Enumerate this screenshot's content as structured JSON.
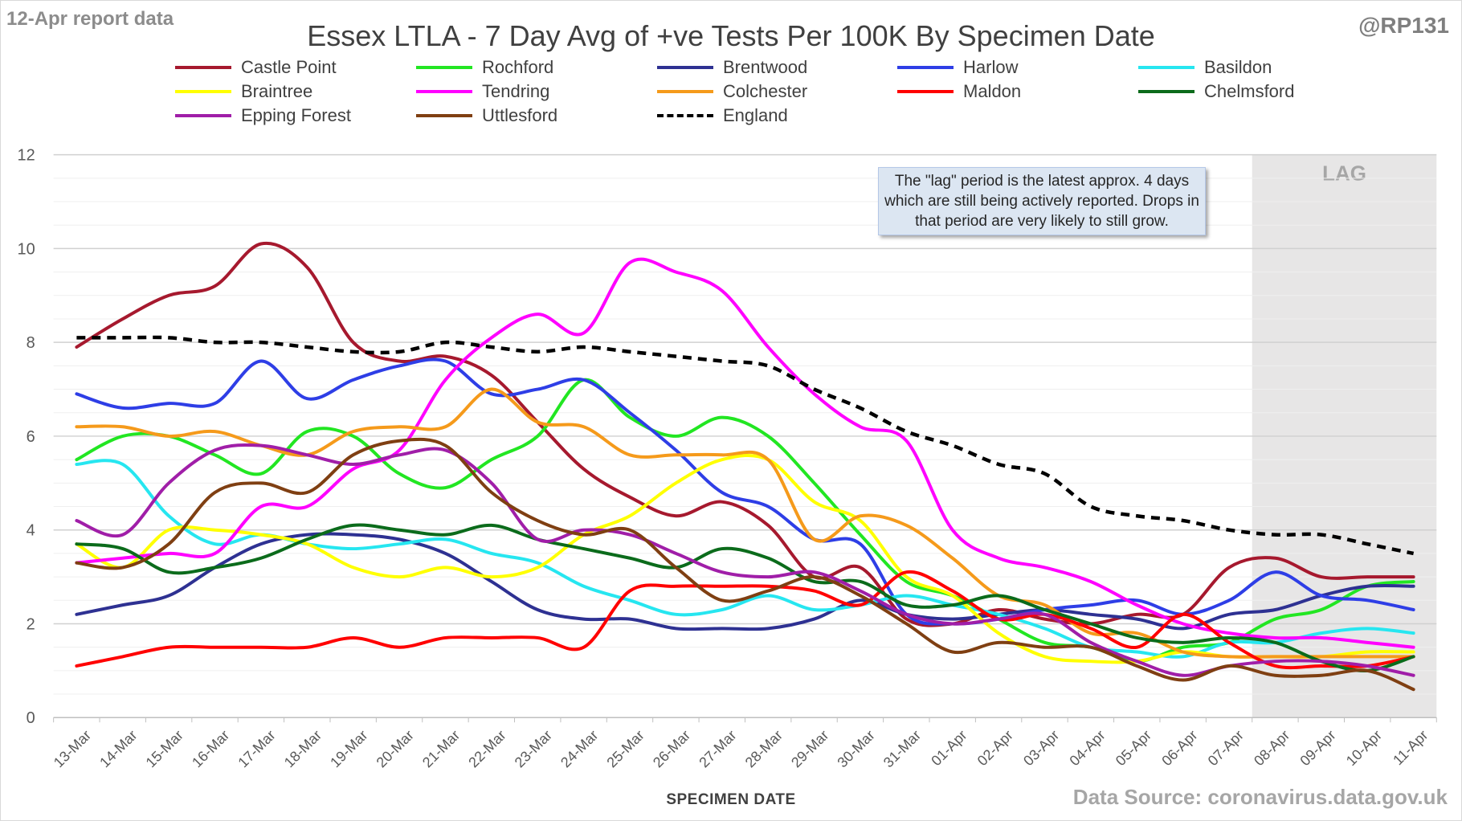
{
  "header": {
    "report_label": "12-Apr report data",
    "handle": "@RP131",
    "source": "Data Source: coronavirus.data.gov.uk"
  },
  "note": "The \"lag\" period is the latest approx. 4 days which are still being actively reported. Drops in that period are very likely to still grow.",
  "chart_data": {
    "type": "line",
    "title": "Essex LTLA - 7 Day Avg of +ve Tests Per 100K By Specimen Date",
    "xlabel": "SPECIMEN DATE",
    "ylabel": "",
    "ylim": [
      0,
      12
    ],
    "yticks": [
      0,
      2,
      4,
      6,
      8,
      10,
      12
    ],
    "grid": true,
    "legend": "top",
    "lag_label": "LAG",
    "lag_start": "08-Apr",
    "categories": [
      "13-Mar",
      "14-Mar",
      "15-Mar",
      "16-Mar",
      "17-Mar",
      "18-Mar",
      "19-Mar",
      "20-Mar",
      "21-Mar",
      "22-Mar",
      "23-Mar",
      "24-Mar",
      "25-Mar",
      "26-Mar",
      "27-Mar",
      "28-Mar",
      "29-Mar",
      "30-Mar",
      "31-Mar",
      "01-Apr",
      "02-Apr",
      "03-Apr",
      "04-Apr",
      "05-Apr",
      "06-Apr",
      "07-Apr",
      "08-Apr",
      "09-Apr",
      "10-Apr",
      "11-Apr"
    ],
    "series": [
      {
        "name": "Castle Point",
        "color": "#a6192e",
        "dashed": false,
        "values": [
          7.9,
          8.5,
          9.0,
          9.2,
          10.1,
          9.6,
          8.0,
          7.6,
          7.7,
          7.3,
          6.3,
          5.3,
          4.7,
          4.3,
          4.6,
          4.1,
          3.0,
          3.2,
          2.1,
          2.0,
          2.3,
          2.1,
          2.0,
          2.2,
          2.2,
          3.2,
          3.4,
          3.0,
          3.0,
          3.0
        ]
      },
      {
        "name": "Rochford",
        "color": "#22e622",
        "dashed": false,
        "values": [
          5.5,
          6.0,
          6.0,
          5.6,
          5.2,
          6.1,
          6.0,
          5.2,
          4.9,
          5.5,
          6.0,
          7.2,
          6.4,
          6.0,
          6.4,
          6.0,
          5.0,
          3.9,
          2.9,
          2.6,
          2.1,
          1.6,
          1.5,
          1.2,
          1.5,
          1.6,
          2.1,
          2.3,
          2.8,
          2.9
        ]
      },
      {
        "name": "Brentwood",
        "color": "#2e3192",
        "dashed": false,
        "values": [
          2.2,
          2.4,
          2.6,
          3.2,
          3.7,
          3.9,
          3.9,
          3.8,
          3.5,
          2.9,
          2.3,
          2.1,
          2.1,
          1.9,
          1.9,
          1.9,
          2.1,
          2.5,
          2.2,
          2.1,
          2.2,
          2.3,
          2.2,
          2.1,
          1.9,
          2.2,
          2.3,
          2.6,
          2.8,
          2.8
        ]
      },
      {
        "name": "Harlow",
        "color": "#2e3ee6",
        "dashed": false,
        "values": [
          6.9,
          6.6,
          6.7,
          6.7,
          7.6,
          6.8,
          7.2,
          7.5,
          7.6,
          6.9,
          7.0,
          7.2,
          6.5,
          5.7,
          4.8,
          4.5,
          3.8,
          3.7,
          2.2,
          2.0,
          2.1,
          2.3,
          2.4,
          2.5,
          2.2,
          2.5,
          3.1,
          2.6,
          2.5,
          2.3
        ]
      },
      {
        "name": "Basildon",
        "color": "#26e6f0",
        "dashed": false,
        "values": [
          5.4,
          5.4,
          4.3,
          3.7,
          3.9,
          3.7,
          3.6,
          3.7,
          3.8,
          3.5,
          3.3,
          2.8,
          2.5,
          2.2,
          2.3,
          2.6,
          2.3,
          2.4,
          2.6,
          2.4,
          2.2,
          1.9,
          1.5,
          1.4,
          1.3,
          1.6,
          1.6,
          1.8,
          1.9,
          1.8
        ]
      },
      {
        "name": "Braintree",
        "color": "#ffff00",
        "dashed": false,
        "values": [
          3.7,
          3.2,
          4.0,
          4.0,
          3.9,
          3.7,
          3.2,
          3.0,
          3.2,
          3.0,
          3.2,
          3.9,
          4.3,
          5.0,
          5.5,
          5.5,
          4.6,
          4.2,
          3.0,
          2.6,
          1.8,
          1.3,
          1.2,
          1.2,
          1.4,
          1.3,
          1.3,
          1.3,
          1.4,
          1.4
        ]
      },
      {
        "name": "Tendring",
        "color": "#ff00ff",
        "dashed": false,
        "values": [
          3.3,
          3.4,
          3.5,
          3.5,
          4.5,
          4.5,
          5.3,
          5.7,
          7.2,
          8.1,
          8.6,
          8.2,
          9.7,
          9.5,
          9.1,
          7.9,
          6.9,
          6.2,
          5.9,
          4.0,
          3.4,
          3.2,
          2.9,
          2.4,
          2.0,
          1.8,
          1.7,
          1.7,
          1.6,
          1.5
        ]
      },
      {
        "name": "Colchester",
        "color": "#f59a1b",
        "dashed": false,
        "values": [
          6.2,
          6.2,
          6.0,
          6.1,
          5.8,
          5.6,
          6.1,
          6.2,
          6.2,
          7.0,
          6.3,
          6.2,
          5.6,
          5.6,
          5.6,
          5.5,
          3.8,
          4.3,
          4.1,
          3.4,
          2.6,
          2.4,
          1.8,
          1.8,
          1.4,
          1.3,
          1.3,
          1.3,
          1.3,
          1.3
        ]
      },
      {
        "name": "Maldon",
        "color": "#ff0000",
        "dashed": false,
        "values": [
          1.1,
          1.3,
          1.5,
          1.5,
          1.5,
          1.5,
          1.7,
          1.5,
          1.7,
          1.7,
          1.7,
          1.5,
          2.7,
          2.8,
          2.8,
          2.8,
          2.7,
          2.4,
          3.1,
          2.7,
          2.1,
          2.2,
          1.9,
          1.5,
          2.2,
          1.6,
          1.1,
          1.1,
          1.1,
          1.3
        ]
      },
      {
        "name": "Chelmsford",
        "color": "#0b6b1b",
        "dashed": false,
        "values": [
          3.7,
          3.6,
          3.1,
          3.2,
          3.4,
          3.8,
          4.1,
          4.0,
          3.9,
          4.1,
          3.8,
          3.6,
          3.4,
          3.2,
          3.6,
          3.4,
          2.9,
          2.9,
          2.4,
          2.4,
          2.6,
          2.3,
          2.0,
          1.7,
          1.6,
          1.7,
          1.6,
          1.2,
          1.0,
          1.3
        ]
      },
      {
        "name": "Epping Forest",
        "color": "#a01ea8",
        "dashed": false,
        "values": [
          4.2,
          3.9,
          5.0,
          5.7,
          5.8,
          5.6,
          5.4,
          5.6,
          5.7,
          5.0,
          3.8,
          4.0,
          3.9,
          3.5,
          3.1,
          3.0,
          3.1,
          2.7,
          2.2,
          2.0,
          2.1,
          2.2,
          1.6,
          1.2,
          0.9,
          1.1,
          1.2,
          1.2,
          1.1,
          0.9
        ]
      },
      {
        "name": "Uttlesford",
        "color": "#7f3f12",
        "dashed": false,
        "values": [
          3.3,
          3.2,
          3.7,
          4.8,
          5.0,
          4.8,
          5.6,
          5.9,
          5.8,
          4.8,
          4.2,
          3.9,
          4.0,
          3.2,
          2.5,
          2.7,
          3.0,
          2.6,
          2.0,
          1.4,
          1.6,
          1.5,
          1.5,
          1.1,
          0.8,
          1.1,
          0.9,
          0.9,
          1.0,
          0.6
        ]
      },
      {
        "name": "England",
        "color": "#000000",
        "dashed": true,
        "values": [
          8.1,
          8.1,
          8.1,
          8.0,
          8.0,
          7.9,
          7.8,
          7.8,
          8.0,
          7.9,
          7.8,
          7.9,
          7.8,
          7.7,
          7.6,
          7.5,
          7.0,
          6.6,
          6.1,
          5.8,
          5.4,
          5.2,
          4.5,
          4.3,
          4.2,
          4.0,
          3.9,
          3.9,
          3.7,
          3.5
        ]
      }
    ]
  }
}
